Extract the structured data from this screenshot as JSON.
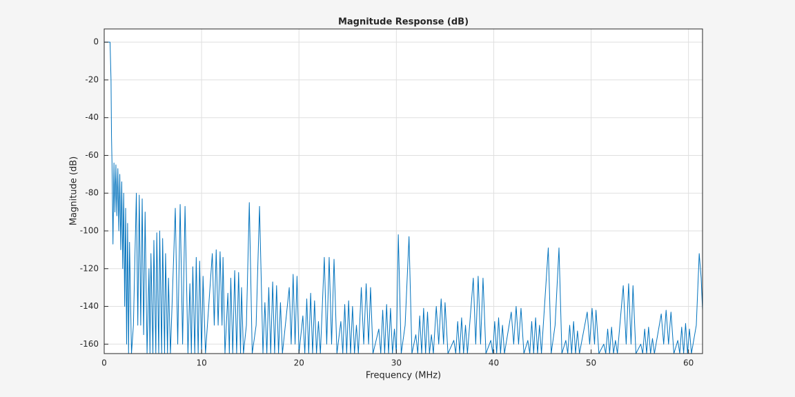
{
  "chart_data": {
    "type": "line",
    "title": "Magnitude Response (dB)",
    "x_label": "Frequency (MHz)",
    "y_label": "Magnitude (dB)",
    "xlim": [
      0,
      61.44
    ],
    "ylim": [
      -165,
      7
    ],
    "xticks": [
      0,
      10,
      20,
      30,
      40,
      50,
      60
    ],
    "yticks": [
      0,
      -20,
      -40,
      -60,
      -80,
      -100,
      -120,
      -140,
      -160
    ],
    "grid": true,
    "x": [
      0,
      0.6,
      0.7,
      0.75,
      0.8,
      0.9,
      1.0,
      1.1,
      1.2,
      1.3,
      1.4,
      1.5,
      1.6,
      1.7,
      1.8,
      1.9,
      2.0,
      2.1,
      2.2,
      2.3,
      2.4,
      2.5,
      2.6,
      2.8,
      3.0,
      3.3,
      3.45,
      3.6,
      3.75,
      3.9,
      4.05,
      4.2,
      4.4,
      4.6,
      4.7,
      4.8,
      5.0,
      5.1,
      5.3,
      5.4,
      5.6,
      5.7,
      5.9,
      6.0,
      6.2,
      6.3,
      6.5,
      6.6,
      6.8,
      7.3,
      7.55,
      7.8,
      8.05,
      8.3,
      8.6,
      8.8,
      8.95,
      9.1,
      9.3,
      9.45,
      9.65,
      9.8,
      10.0,
      10.15,
      10.4,
      11.1,
      11.3,
      11.5,
      11.7,
      11.9,
      12.1,
      12.2,
      12.4,
      12.7,
      12.85,
      13.0,
      13.2,
      13.4,
      13.6,
      13.8,
      14.0,
      14.1,
      14.3,
      14.6,
      14.9,
      15.2,
      15.6,
      15.95,
      16.3,
      16.5,
      16.7,
      16.9,
      17.1,
      17.3,
      17.5,
      17.7,
      17.9,
      18.1,
      18.3,
      19.0,
      19.2,
      19.4,
      19.6,
      19.8,
      20.0,
      20.4,
      20.6,
      20.8,
      21.0,
      21.2,
      21.4,
      21.6,
      21.8,
      22.0,
      22.2,
      22.6,
      22.85,
      23.1,
      23.35,
      23.6,
      23.9,
      24.3,
      24.5,
      24.7,
      24.9,
      25.1,
      25.3,
      25.5,
      25.7,
      25.9,
      26.1,
      26.4,
      26.65,
      26.9,
      27.15,
      27.35,
      27.6,
      28.2,
      28.4,
      28.6,
      28.8,
      29.0,
      29.2,
      29.4,
      29.6,
      29.8,
      30.0,
      30.2,
      30.5,
      30.9,
      31.3,
      31.6,
      32.0,
      32.2,
      32.4,
      32.6,
      32.8,
      33.0,
      33.2,
      33.4,
      33.6,
      33.8,
      34.1,
      34.35,
      34.6,
      34.85,
      35.0,
      35.3,
      35.9,
      36.1,
      36.3,
      36.5,
      36.7,
      36.9,
      37.1,
      37.3,
      37.9,
      38.15,
      38.4,
      38.65,
      38.9,
      39.2,
      39.7,
      39.9,
      40.1,
      40.3,
      40.5,
      40.7,
      40.9,
      41.1,
      41.8,
      42.05,
      42.3,
      42.55,
      42.8,
      43.1,
      43.5,
      43.7,
      43.9,
      44.1,
      44.3,
      44.5,
      44.7,
      44.9,
      45.6,
      45.9,
      46.3,
      46.7,
      47.0,
      47.4,
      47.6,
      47.8,
      48.0,
      48.2,
      48.4,
      48.6,
      48.8,
      49.6,
      49.85,
      50.1,
      50.35,
      50.5,
      50.8,
      51.3,
      51.5,
      51.7,
      51.9,
      52.1,
      52.3,
      52.5,
      52.7,
      53.3,
      53.6,
      53.85,
      54.1,
      54.3,
      54.6,
      55.1,
      55.3,
      55.5,
      55.7,
      55.9,
      56.1,
      56.3,
      56.5,
      57.2,
      57.45,
      57.7,
      57.95,
      58.2,
      58.5,
      58.9,
      59.1,
      59.3,
      59.5,
      59.7,
      59.9,
      60.1,
      60.3,
      60.8,
      61.1,
      61.3,
      61.44
    ],
    "series": [
      {
        "color": "#0072bd",
        "values": [
          0,
          0,
          -20,
          -50,
          -64,
          -107,
          -64,
          -90,
          -65,
          -92,
          -67,
          -100,
          -70,
          -110,
          -74,
          -120,
          -80,
          -140,
          -88,
          -160,
          -96,
          -165,
          -106,
          -165,
          -150,
          -80,
          -150,
          -81,
          -150,
          -83,
          -155,
          -90,
          -165,
          -120,
          -165,
          -112,
          -165,
          -105,
          -165,
          -101,
          -165,
          -100,
          -165,
          -104,
          -165,
          -112,
          -165,
          -125,
          -165,
          -88,
          -160,
          -86,
          -160,
          -87,
          -165,
          -128,
          -165,
          -119,
          -165,
          -114,
          -165,
          -116,
          -165,
          -124,
          -165,
          -112,
          -150,
          -110,
          -150,
          -111,
          -150,
          -114,
          -165,
          -133,
          -165,
          -125,
          -165,
          -121,
          -165,
          -122,
          -165,
          -130,
          -165,
          -150,
          -85,
          -165,
          -150,
          -87,
          -165,
          -138,
          -165,
          -130,
          -165,
          -127,
          -165,
          -129,
          -165,
          -138,
          -165,
          -130,
          -160,
          -123,
          -160,
          -124,
          -165,
          -145,
          -165,
          -136,
          -165,
          -133,
          -165,
          -137,
          -165,
          -148,
          -165,
          -114,
          -160,
          -114,
          -160,
          -115,
          -165,
          -148,
          -165,
          -139,
          -165,
          -137,
          -165,
          -140,
          -165,
          -150,
          -165,
          -130,
          -160,
          -128,
          -160,
          -130,
          -165,
          -152,
          -165,
          -142,
          -165,
          -139,
          -165,
          -141,
          -165,
          -152,
          -165,
          -102,
          -165,
          -150,
          -103,
          -165,
          -155,
          -165,
          -145,
          -165,
          -141,
          -165,
          -143,
          -165,
          -155,
          -165,
          -140,
          -160,
          -136,
          -160,
          -138,
          -165,
          -158,
          -165,
          -148,
          -165,
          -146,
          -165,
          -150,
          -165,
          -125,
          -160,
          -124,
          -160,
          -125,
          -165,
          -158,
          -165,
          -148,
          -165,
          -146,
          -165,
          -150,
          -165,
          -143,
          -160,
          -140,
          -160,
          -141,
          -165,
          -158,
          -165,
          -148,
          -165,
          -146,
          -165,
          -150,
          -165,
          -109,
          -165,
          -150,
          -109,
          -165,
          -158,
          -165,
          -150,
          -165,
          -148,
          -165,
          -153,
          -165,
          -143,
          -160,
          -141,
          -160,
          -142,
          -165,
          -160,
          -165,
          -152,
          -165,
          -151,
          -165,
          -158,
          -165,
          -129,
          -160,
          -128,
          -160,
          -129,
          -165,
          -160,
          -165,
          -152,
          -165,
          -151,
          -165,
          -157,
          -165,
          -144,
          -160,
          -142,
          -160,
          -143,
          -165,
          -158,
          -165,
          -151,
          -165,
          -149,
          -165,
          -152,
          -165,
          -150,
          -112,
          -125,
          -142
        ]
      }
    ]
  }
}
